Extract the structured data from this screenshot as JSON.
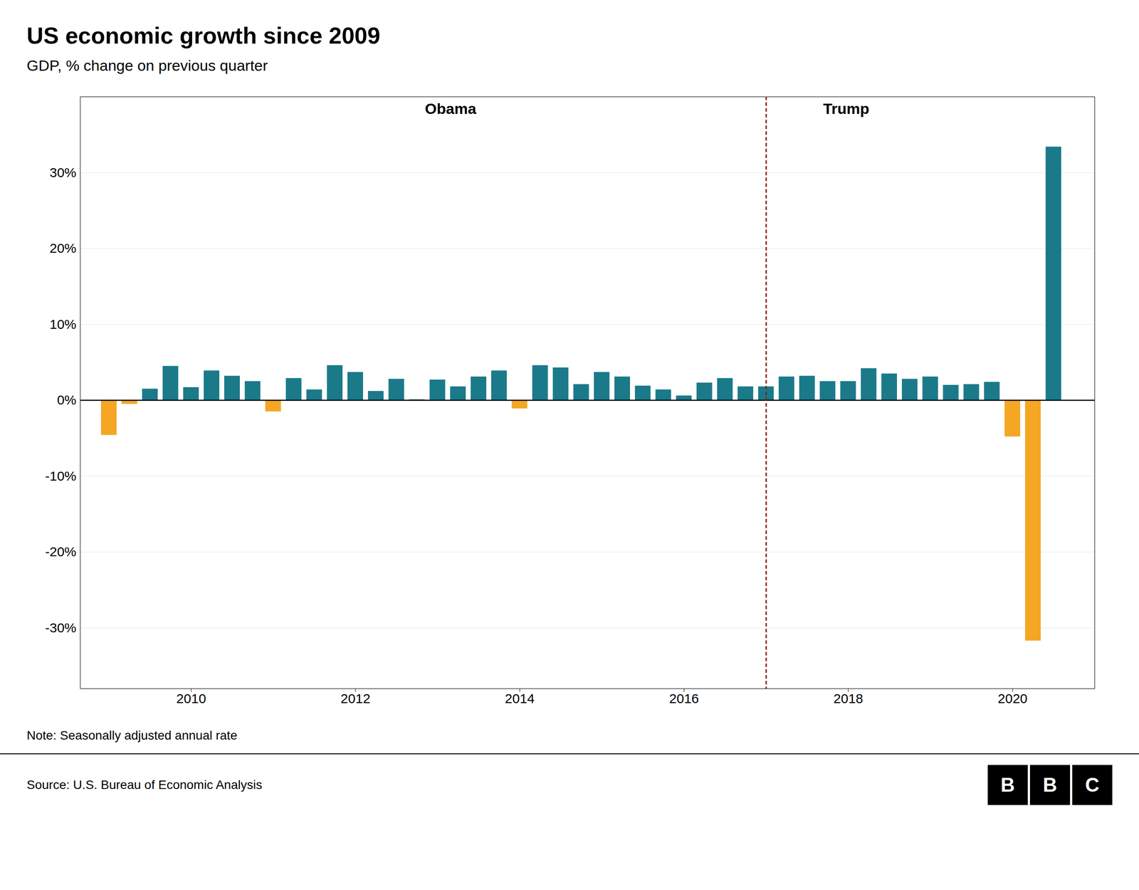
{
  "chart_data": {
    "type": "bar",
    "title": "US economic growth since 2009",
    "subtitle": "GDP, % change on previous quarter",
    "note": "Note: Seasonally adjusted annual rate",
    "source": "Source: U.S. Bureau of Economic Analysis",
    "logo": "BBC",
    "x": [
      2009.0,
      2009.25,
      2009.5,
      2009.75,
      2010.0,
      2010.25,
      2010.5,
      2010.75,
      2011.0,
      2011.25,
      2011.5,
      2011.75,
      2012.0,
      2012.25,
      2012.5,
      2012.75,
      2013.0,
      2013.25,
      2013.5,
      2013.75,
      2014.0,
      2014.25,
      2014.5,
      2014.75,
      2015.0,
      2015.25,
      2015.5,
      2015.75,
      2016.0,
      2016.25,
      2016.5,
      2016.75,
      2017.0,
      2017.25,
      2017.5,
      2017.75,
      2018.0,
      2018.25,
      2018.5,
      2018.75,
      2019.0,
      2019.25,
      2019.5,
      2019.75,
      2020.0,
      2020.25,
      2020.5
    ],
    "values": [
      -4.6,
      -0.5,
      1.5,
      4.5,
      1.7,
      3.9,
      3.2,
      2.5,
      -1.5,
      2.9,
      1.4,
      4.6,
      3.7,
      1.2,
      2.8,
      0.1,
      2.7,
      1.8,
      3.1,
      3.9,
      -1.1,
      4.6,
      4.3,
      2.1,
      3.7,
      3.1,
      1.9,
      1.4,
      0.6,
      2.3,
      2.9,
      1.8,
      1.8,
      3.1,
      3.2,
      2.5,
      2.5,
      4.2,
      3.5,
      2.8,
      3.1,
      2.0,
      2.1,
      2.4,
      -4.8,
      -31.7,
      33.4
    ],
    "colors": [
      "#f5a623",
      "#f5a623",
      "#1a7a8a",
      "#1a7a8a",
      "#1a7a8a",
      "#1a7a8a",
      "#1a7a8a",
      "#1a7a8a",
      "#f5a623",
      "#1a7a8a",
      "#1a7a8a",
      "#1a7a8a",
      "#1a7a8a",
      "#1a7a8a",
      "#1a7a8a",
      "#1a7a8a",
      "#1a7a8a",
      "#1a7a8a",
      "#1a7a8a",
      "#1a7a8a",
      "#f5a623",
      "#1a7a8a",
      "#1a7a8a",
      "#1a7a8a",
      "#1a7a8a",
      "#1a7a8a",
      "#1a7a8a",
      "#1a7a8a",
      "#1a7a8a",
      "#1a7a8a",
      "#1a7a8a",
      "#1a7a8a",
      "#1a7a8a",
      "#1a7a8a",
      "#1a7a8a",
      "#1a7a8a",
      "#1a7a8a",
      "#1a7a8a",
      "#1a7a8a",
      "#1a7a8a",
      "#1a7a8a",
      "#1a7a8a",
      "#1a7a8a",
      "#1a7a8a",
      "#f5a623",
      "#f5a623",
      "#1a7a8a"
    ],
    "xlim": [
      2008.65,
      2021.0
    ],
    "xticks": [
      2010,
      2012,
      2014,
      2016,
      2018,
      2020
    ],
    "ylim": [
      -38,
      40
    ],
    "yticks": [
      {
        "value": -30,
        "label": "-30%"
      },
      {
        "value": -20,
        "label": "-20%"
      },
      {
        "value": -10,
        "label": "-10%"
      },
      {
        "value": 0,
        "label": "0%"
      },
      {
        "value": 10,
        "label": "10%"
      },
      {
        "value": 20,
        "label": "20%"
      },
      {
        "value": 30,
        "label": "30%"
      }
    ],
    "grid": true,
    "divider": {
      "x": 2017.0,
      "color": "#8b1a1a"
    },
    "annotations": [
      "Obama",
      "Trump"
    ]
  }
}
